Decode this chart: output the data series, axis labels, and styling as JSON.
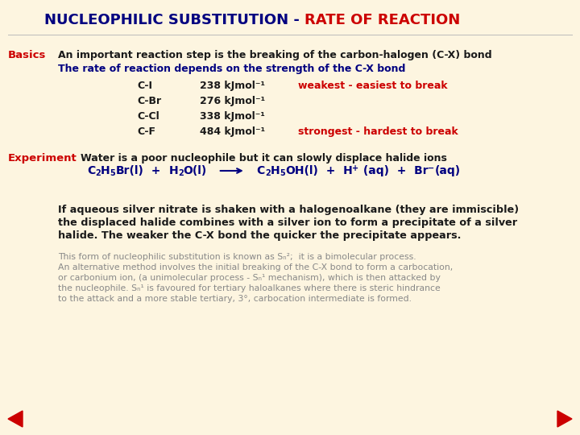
{
  "bg_color": "#fdf5e0",
  "title_part1": "NUCLEOPHILIC SUBSTITUTION - ",
  "title_part2": "RATE OF REACTION",
  "title_color1": "#000080",
  "title_color2": "#cc0000",
  "title_fontsize": 13,
  "basics_label": "Basics",
  "basics_color": "#cc0000",
  "basics_line1": "An important reaction step is the breaking of the carbon-halogen (C-X) bond",
  "basics_line1_color": "#1a1a1a",
  "basics_line2": "The rate of reaction depends on the strength of the C-X bond",
  "basics_line2_color": "#000080",
  "table_data": [
    [
      "C-I",
      "238 kJmol⁻¹",
      "weakest - easiest to break",
      "#cc0000"
    ],
    [
      "C-Br",
      "276 kJmol⁻¹",
      "",
      ""
    ],
    [
      "C-Cl",
      "338 kJmol⁻¹",
      "",
      ""
    ],
    [
      "C-F",
      "484 kJmol⁻¹",
      "strongest - hardest to break",
      "#cc0000"
    ]
  ],
  "table_color": "#1a1a1a",
  "experiment_label": "Experiment",
  "experiment_color": "#cc0000",
  "experiment_line": "Water is a poor nucleophile but it can slowly displace halide ions",
  "experiment_line_color": "#1a1a1a",
  "equation_color": "#000080",
  "silver_text": "If aqueous silver nitrate is shaken with a halogenoalkane (they are immiscible)\nthe displaced halide combines with a silver ion to form a precipitate of a silver\nhalide. The weaker the C-X bond the quicker the precipitate appears.",
  "silver_color": "#1a1a1a",
  "small_text_lines": [
    "This form of nucleophilic substitution is known as Sₙ²;  it is a bimolecular process.",
    "An alternative method involves the initial breaking of the C-X bond to form a carbocation,",
    "or carbonium ion, (a unimolecular process - Sₙ¹ mechanism), which is then attacked by",
    "the nucleophile. Sₙ¹ is favoured for tertiary haloalkanes where there is steric hindrance",
    "to the attack and a more stable tertiary, 3°, carbocation intermediate is formed."
  ],
  "small_color": "#888888",
  "nav_arrow_color": "#cc0000"
}
